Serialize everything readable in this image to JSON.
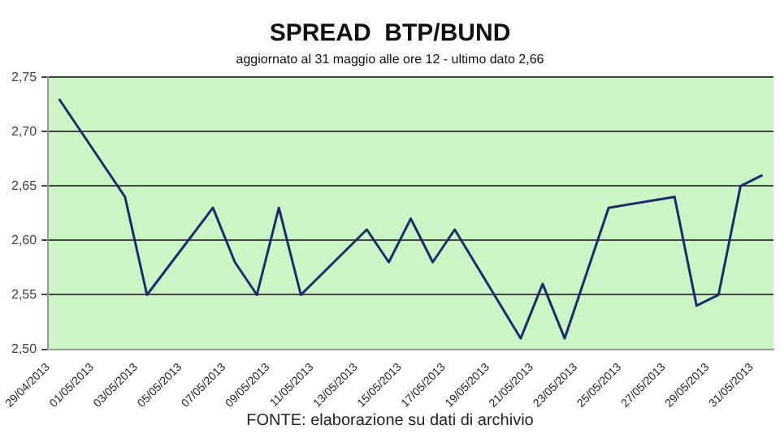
{
  "chart_data": {
    "type": "line",
    "title": "SPREAD  BTP/BUND",
    "subtitle": "aggiornato al 31 maggio alle ore 12 - ultimo dato 2,66",
    "x": [
      "2013-04-29T12:00",
      "2013-05-02T12:00",
      "2013-05-03T12:00",
      "2013-05-06T12:00",
      "2013-05-07T12:00",
      "2013-05-08T12:00",
      "2013-05-09T12:00",
      "2013-05-10T12:00",
      "2013-05-13T12:00",
      "2013-05-14T12:00",
      "2013-05-15T12:00",
      "2013-05-16T12:00",
      "2013-05-17T12:00",
      "2013-05-20T12:00",
      "2013-05-21T12:00",
      "2013-05-22T12:00",
      "2013-05-24T12:00",
      "2013-05-27T12:00",
      "2013-05-28T12:00",
      "2013-05-29T12:00",
      "2013-05-30T12:00",
      "2013-05-31T12:00"
    ],
    "series": [
      {
        "color": "#1f2a6b",
        "values": [
          2.73,
          2.64,
          2.55,
          2.63,
          2.58,
          2.55,
          2.63,
          2.55,
          2.61,
          2.58,
          2.62,
          2.58,
          2.61,
          2.51,
          2.56,
          2.51,
          2.63,
          2.64,
          2.54,
          2.55,
          2.65,
          2.66
        ]
      }
    ],
    "xlim": [
      "2013-04-29",
      "2013-06-01"
    ],
    "xticks": [
      {
        "value": "2013-04-29",
        "label": "29/04/2013"
      },
      {
        "value": "2013-05-01",
        "label": "01/05/2013"
      },
      {
        "value": "2013-05-03",
        "label": "03/05/2013"
      },
      {
        "value": "2013-05-05",
        "label": "05/05/2013"
      },
      {
        "value": "2013-05-07",
        "label": "07/05/2013"
      },
      {
        "value": "2013-05-09",
        "label": "09/05/2013"
      },
      {
        "value": "2013-05-11",
        "label": "11/05/2013"
      },
      {
        "value": "2013-05-13",
        "label": "13/05/2013"
      },
      {
        "value": "2013-05-15",
        "label": "15/05/2013"
      },
      {
        "value": "2013-05-17",
        "label": "17/05/2013"
      },
      {
        "value": "2013-05-19",
        "label": "19/05/2013"
      },
      {
        "value": "2013-05-21",
        "label": "21/05/2013"
      },
      {
        "value": "2013-05-23",
        "label": "23/05/2013"
      },
      {
        "value": "2013-05-25",
        "label": "25/05/2013"
      },
      {
        "value": "2013-05-27",
        "label": "27/05/2013"
      },
      {
        "value": "2013-05-29",
        "label": "29/05/2013"
      },
      {
        "value": "2013-05-31",
        "label": "31/05/2013"
      }
    ],
    "ylim": [
      2.5,
      2.75
    ],
    "yticks": [
      {
        "value": 2.5,
        "label": "2,50"
      },
      {
        "value": 2.55,
        "label": "2,55"
      },
      {
        "value": 2.6,
        "label": "2,60"
      },
      {
        "value": 2.65,
        "label": "2,65"
      },
      {
        "value": 2.7,
        "label": "2,70"
      },
      {
        "value": 2.75,
        "label": "2,75"
      }
    ],
    "grid": "y",
    "legend": false,
    "marker": "none",
    "line_style": "solid",
    "annotations": [
      "FONTE: elaborazione su dati di archivio"
    ]
  }
}
